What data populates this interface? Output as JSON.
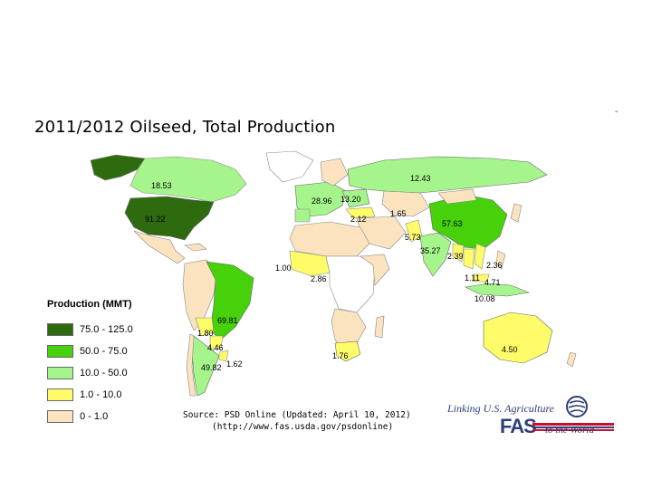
{
  "page": {
    "corner_mark": "-"
  },
  "title": "2011/2012 Oilseed, Total Production",
  "legend": {
    "title": "Production (MMT)",
    "items": [
      {
        "label": "75.0 - 125.0",
        "color": "#2e6b0e"
      },
      {
        "label": "50.0 - 75.0",
        "color": "#47d10a"
      },
      {
        "label": "10.0 - 50.0",
        "color": "#a6f58c"
      },
      {
        "label": "1.0 - 10.0",
        "color": "#fffc6a"
      },
      {
        "label": "0 - 1.0",
        "color": "#fbe3c0"
      }
    ]
  },
  "map": {
    "ocean_color": "#ffffff",
    "no_data_color": "#ffffff",
    "values": [
      {
        "region": "canada",
        "value": "18.53",
        "class": "10.0 - 50.0"
      },
      {
        "region": "united-states",
        "value": "91.22",
        "class": "75.0 - 125.0"
      },
      {
        "region": "russia",
        "value": "12.43",
        "class": "10.0 - 50.0"
      },
      {
        "region": "european-union",
        "value": "28.96",
        "class": "10.0 - 50.0"
      },
      {
        "region": "ukraine",
        "value": "13.20",
        "class": "10.0 - 50.0"
      },
      {
        "region": "turkey",
        "value": "2.12",
        "class": "1.0 - 10.0"
      },
      {
        "region": "kazakhstan",
        "value": "1.65",
        "class": "1.0 - 10.0"
      },
      {
        "region": "china",
        "value": "57.63",
        "class": "50.0 - 75.0"
      },
      {
        "region": "pakistan",
        "value": "5.73",
        "class": "1.0 - 10.0"
      },
      {
        "region": "india",
        "value": "35.27",
        "class": "10.0 - 50.0"
      },
      {
        "region": "myanmar",
        "value": "2.39",
        "class": "1.0 - 10.0"
      },
      {
        "region": "vietnam",
        "value": "2.36",
        "class": "1.0 - 10.0"
      },
      {
        "region": "thailand",
        "value": "1.11",
        "class": "1.0 - 10.0"
      },
      {
        "region": "malaysia",
        "value": "4.71",
        "class": "1.0 - 10.0"
      },
      {
        "region": "indonesia",
        "value": "10.08",
        "class": "10.0 - 50.0"
      },
      {
        "region": "nigeria-west",
        "value": "1.00",
        "class": "1.0 - 10.0"
      },
      {
        "region": "nigeria",
        "value": "2.86",
        "class": "1.0 - 10.0"
      },
      {
        "region": "south-africa",
        "value": "1.76",
        "class": "1.0 - 10.0"
      },
      {
        "region": "brazil",
        "value": "69.81",
        "class": "50.0 - 75.0"
      },
      {
        "region": "bolivia",
        "value": "1.80",
        "class": "1.0 - 10.0"
      },
      {
        "region": "paraguay",
        "value": "4.46",
        "class": "1.0 - 10.0"
      },
      {
        "region": "argentina",
        "value": "49.82",
        "class": "10.0 - 50.0"
      },
      {
        "region": "uruguay",
        "value": "1.62",
        "class": "1.0 - 10.0"
      },
      {
        "region": "australia",
        "value": "4.50",
        "class": "1.0 - 10.0"
      }
    ]
  },
  "source": {
    "line1": "Source: PSD Online (Updated: April 10, 2012)",
    "line2": "(http://www.fas.usda.gov/psdonline)"
  },
  "logo": {
    "line1": "Linking U.S. Agriculture",
    "acronym": "FAS",
    "line2": "to the World"
  }
}
